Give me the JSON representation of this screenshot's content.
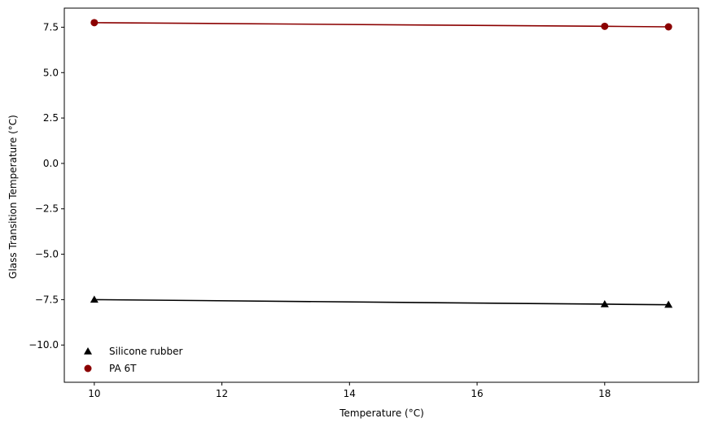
{
  "chart_data": {
    "type": "line",
    "title": "",
    "xlabel": "Temperature (°C)",
    "ylabel": "Glass Transition Temperature (°C)",
    "xlim": [
      9.53,
      19.47
    ],
    "ylim": [
      -12.05,
      8.55
    ],
    "xticks": [
      10,
      12,
      14,
      16,
      18
    ],
    "xtick_labels": [
      "10",
      "12",
      "14",
      "16",
      "18"
    ],
    "yticks": [
      -10.0,
      -7.5,
      -5.0,
      -2.5,
      0.0,
      2.5,
      5.0,
      7.5
    ],
    "ytick_labels": [
      "−10.0",
      "−7.5",
      "−5.0",
      "−2.5",
      "0.0",
      "2.5",
      "5.0",
      "7.5"
    ],
    "grid": false,
    "legend_position": "lower-left",
    "series": [
      {
        "name": "Silicone rubber",
        "marker": "triangle",
        "color": "#000000",
        "x": [
          10,
          18,
          19
        ],
        "y": [
          -7.5,
          -7.75,
          -7.78
        ]
      },
      {
        "name": "PA 6T",
        "marker": "circle",
        "color": "#8b0000",
        "x": [
          10,
          18,
          19
        ],
        "y": [
          7.75,
          7.55,
          7.52
        ]
      }
    ]
  }
}
